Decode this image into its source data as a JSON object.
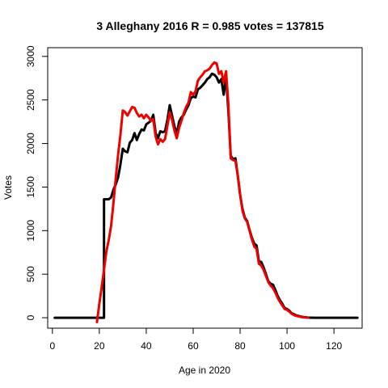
{
  "chart_data": {
    "type": "line",
    "title": "3 Alleghany 2016 R = 0.985 votes = 137815",
    "xlabel": "Age in 2020",
    "ylabel": "Votes",
    "xlim": [
      -2,
      132
    ],
    "ylim": [
      -120,
      3100
    ],
    "x_ticks": [
      0,
      20,
      40,
      60,
      80,
      100,
      120
    ],
    "y_ticks": [
      0,
      500,
      1000,
      1500,
      2000,
      2500,
      3000
    ],
    "series": [
      {
        "color": "#000000",
        "points": [
          [
            1,
            0
          ],
          [
            21,
            0
          ],
          [
            22,
            0
          ],
          [
            22,
            1360
          ],
          [
            24,
            1360
          ],
          [
            25,
            1380
          ],
          [
            26,
            1470
          ],
          [
            27,
            1530
          ],
          [
            28,
            1610
          ],
          [
            29,
            1760
          ],
          [
            30,
            1940
          ],
          [
            31,
            1910
          ],
          [
            32,
            1900
          ],
          [
            33,
            2010
          ],
          [
            34,
            2040
          ],
          [
            35,
            2120
          ],
          [
            36,
            2040
          ],
          [
            37,
            2110
          ],
          [
            38,
            2160
          ],
          [
            39,
            2150
          ],
          [
            40,
            2220
          ],
          [
            41,
            2240
          ],
          [
            42,
            2260
          ],
          [
            43,
            2330
          ],
          [
            44,
            2120
          ],
          [
            45,
            2060
          ],
          [
            46,
            2140
          ],
          [
            47,
            2130
          ],
          [
            48,
            2140
          ],
          [
            49,
            2270
          ],
          [
            50,
            2440
          ],
          [
            51,
            2320
          ],
          [
            52,
            2200
          ],
          [
            53,
            2110
          ],
          [
            54,
            2250
          ],
          [
            55,
            2300
          ],
          [
            56,
            2330
          ],
          [
            57,
            2390
          ],
          [
            58,
            2440
          ],
          [
            59,
            2520
          ],
          [
            60,
            2540
          ],
          [
            61,
            2530
          ],
          [
            62,
            2620
          ],
          [
            63,
            2640
          ],
          [
            64,
            2670
          ],
          [
            65,
            2700
          ],
          [
            66,
            2740
          ],
          [
            67,
            2760
          ],
          [
            68,
            2800
          ],
          [
            69,
            2790
          ],
          [
            70,
            2760
          ],
          [
            71,
            2700
          ],
          [
            72,
            2740
          ],
          [
            73,
            2560
          ],
          [
            74,
            2770
          ],
          [
            75,
            2370
          ],
          [
            76,
            1860
          ],
          [
            77,
            1820
          ],
          [
            78,
            1830
          ],
          [
            79,
            1630
          ],
          [
            80,
            1410
          ],
          [
            81,
            1250
          ],
          [
            82,
            1150
          ],
          [
            83,
            1110
          ],
          [
            84,
            1010
          ],
          [
            85,
            920
          ],
          [
            86,
            850
          ],
          [
            87,
            830
          ],
          [
            88,
            650
          ],
          [
            89,
            640
          ],
          [
            90,
            580
          ],
          [
            91,
            500
          ],
          [
            92,
            420
          ],
          [
            93,
            390
          ],
          [
            94,
            380
          ],
          [
            95,
            320
          ],
          [
            96,
            250
          ],
          [
            97,
            200
          ],
          [
            98,
            160
          ],
          [
            99,
            110
          ],
          [
            100,
            100
          ],
          [
            101,
            80
          ],
          [
            102,
            50
          ],
          [
            103,
            40
          ],
          [
            104,
            25
          ],
          [
            105,
            20
          ],
          [
            106,
            12
          ],
          [
            107,
            8
          ],
          [
            108,
            5
          ],
          [
            109,
            2
          ],
          [
            110,
            1
          ],
          [
            112,
            0
          ],
          [
            130,
            0
          ]
        ]
      },
      {
        "color": "#ee0000",
        "points": [
          [
            19,
            -50
          ],
          [
            20,
            160
          ],
          [
            21,
            350
          ],
          [
            22,
            550
          ],
          [
            23,
            760
          ],
          [
            24,
            890
          ],
          [
            25,
            1050
          ],
          [
            26,
            1310
          ],
          [
            27,
            1600
          ],
          [
            28,
            1870
          ],
          [
            29,
            2100
          ],
          [
            30,
            2380
          ],
          [
            31,
            2360
          ],
          [
            32,
            2320
          ],
          [
            33,
            2370
          ],
          [
            34,
            2420
          ],
          [
            35,
            2410
          ],
          [
            36,
            2350
          ],
          [
            37,
            2310
          ],
          [
            38,
            2330
          ],
          [
            39,
            2290
          ],
          [
            40,
            2330
          ],
          [
            41,
            2300
          ],
          [
            42,
            2260
          ],
          [
            43,
            2280
          ],
          [
            44,
            2080
          ],
          [
            45,
            1990
          ],
          [
            46,
            2050
          ],
          [
            47,
            2020
          ],
          [
            48,
            2050
          ],
          [
            49,
            2200
          ],
          [
            50,
            2360
          ],
          [
            51,
            2270
          ],
          [
            52,
            2150
          ],
          [
            53,
            2060
          ],
          [
            54,
            2180
          ],
          [
            55,
            2260
          ],
          [
            56,
            2350
          ],
          [
            57,
            2420
          ],
          [
            58,
            2470
          ],
          [
            59,
            2590
          ],
          [
            60,
            2560
          ],
          [
            61,
            2600
          ],
          [
            62,
            2720
          ],
          [
            63,
            2760
          ],
          [
            64,
            2790
          ],
          [
            65,
            2830
          ],
          [
            66,
            2840
          ],
          [
            67,
            2860
          ],
          [
            68,
            2900
          ],
          [
            69,
            2930
          ],
          [
            70,
            2920
          ],
          [
            71,
            2800
          ],
          [
            72,
            2830
          ],
          [
            73,
            2700
          ],
          [
            74,
            2830
          ],
          [
            75,
            2450
          ],
          [
            76,
            1830
          ],
          [
            77,
            1810
          ],
          [
            78,
            1800
          ],
          [
            79,
            1640
          ],
          [
            80,
            1420
          ],
          [
            81,
            1230
          ],
          [
            82,
            1140
          ],
          [
            83,
            1100
          ],
          [
            84,
            1000
          ],
          [
            85,
            900
          ],
          [
            86,
            820
          ],
          [
            87,
            790
          ],
          [
            88,
            620
          ],
          [
            89,
            600
          ],
          [
            90,
            550
          ],
          [
            91,
            480
          ],
          [
            92,
            410
          ],
          [
            93,
            370
          ],
          [
            94,
            340
          ],
          [
            95,
            290
          ],
          [
            96,
            230
          ],
          [
            97,
            180
          ],
          [
            98,
            140
          ],
          [
            99,
            100
          ],
          [
            100,
            90
          ],
          [
            101,
            70
          ],
          [
            102,
            45
          ],
          [
            103,
            30
          ],
          [
            104,
            20
          ],
          [
            105,
            15
          ],
          [
            106,
            8
          ],
          [
            107,
            5
          ],
          [
            108,
            2
          ],
          [
            109,
            1
          ]
        ]
      }
    ]
  }
}
